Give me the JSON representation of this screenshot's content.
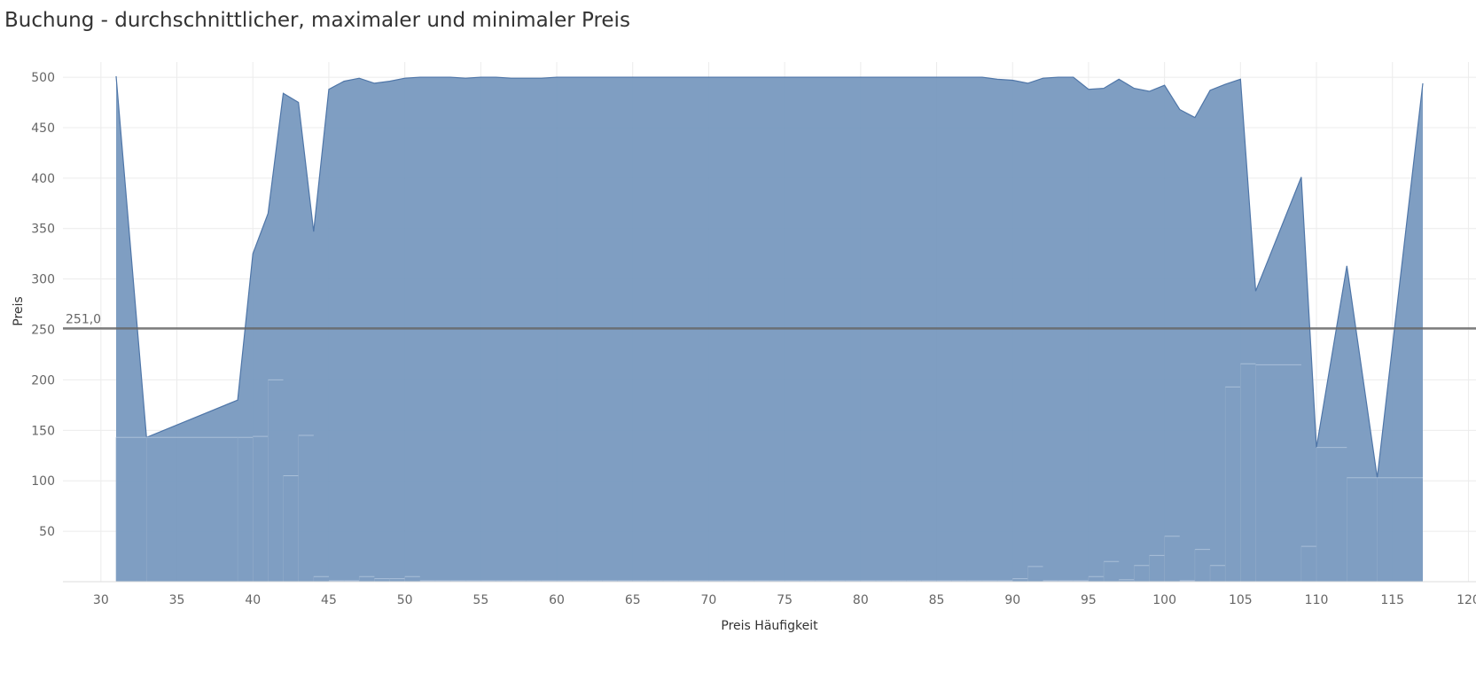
{
  "title": "Buchung - durchschnittlicher, maximaler und minimaler Preis",
  "colors": {
    "area_fill": "#7899bf",
    "area_stroke": "#4f76a8",
    "ref_line": "#666666",
    "grid": "#ececec",
    "text": "#666666",
    "title": "#333333"
  },
  "chart_data": {
    "type": "area",
    "xlabel": "Preis Häufigkeit",
    "ylabel": "Preis",
    "xlim": [
      27.5,
      120.5
    ],
    "ylim": [
      0,
      515
    ],
    "xticks": [
      "30",
      "35",
      "40",
      "45",
      "50",
      "55",
      "60",
      "65",
      "70",
      "75",
      "80",
      "85",
      "90",
      "95",
      "100",
      "105",
      "110",
      "115",
      "120"
    ],
    "yticks": [
      "50",
      "100",
      "150",
      "200",
      "250",
      "300",
      "350",
      "400",
      "450",
      "500"
    ],
    "grid": true,
    "reference_line": {
      "value": 251,
      "label": "251,0"
    },
    "series": [
      {
        "x": [
          31,
          33,
          39,
          40,
          41,
          42,
          43,
          44,
          45,
          46,
          47,
          48,
          49,
          50,
          51,
          52,
          53,
          54,
          55,
          56,
          57,
          58,
          59,
          60,
          61,
          62,
          63,
          64,
          65,
          66,
          67,
          68,
          69,
          70,
          71,
          72,
          73,
          74,
          75,
          76,
          77,
          78,
          79,
          80,
          81,
          82,
          83,
          84,
          85,
          86,
          87,
          88,
          89,
          90,
          91,
          92,
          93,
          94,
          95,
          96,
          97,
          98,
          99,
          100,
          101,
          102,
          103,
          104,
          105,
          106,
          109,
          110,
          112,
          114,
          117
        ],
        "max": [
          501,
          143,
          180,
          325,
          365,
          484,
          475,
          347,
          488,
          496,
          499,
          494,
          496,
          499,
          500,
          500,
          500,
          499,
          500,
          500,
          499,
          499,
          499,
          500,
          500,
          500,
          500,
          500,
          500,
          500,
          500,
          500,
          500,
          500,
          500,
          500,
          500,
          500,
          500,
          500,
          500,
          500,
          500,
          500,
          500,
          500,
          500,
          500,
          500,
          500,
          500,
          500,
          498,
          497,
          494,
          499,
          500,
          500,
          488,
          489,
          498,
          489,
          486,
          492,
          468,
          460,
          487,
          493,
          498,
          288,
          401,
          133,
          313,
          103,
          494
        ],
        "min": [
          143,
          143,
          143,
          144,
          200,
          105,
          145,
          5,
          1,
          1,
          5,
          3,
          3,
          5,
          1,
          1,
          1,
          1,
          1,
          1,
          1,
          1,
          1,
          1,
          1,
          1,
          1,
          1,
          1,
          1,
          1,
          1,
          1,
          1,
          1,
          1,
          1,
          1,
          1,
          1,
          1,
          1,
          1,
          1,
          1,
          1,
          1,
          1,
          1,
          1,
          1,
          1,
          1,
          3,
          15,
          1,
          1,
          1,
          5,
          20,
          2,
          16,
          26,
          45,
          1,
          32,
          16,
          193,
          216,
          215,
          35,
          133,
          103,
          103,
          103
        ]
      }
    ]
  }
}
